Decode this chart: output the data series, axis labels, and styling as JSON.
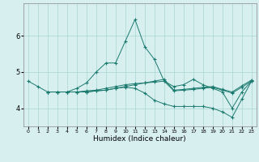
{
  "title": "",
  "xlabel": "Humidex (Indice chaleur)",
  "xlim": [
    -0.5,
    23.5
  ],
  "ylim": [
    3.5,
    6.9
  ],
  "yticks": [
    4,
    5,
    6
  ],
  "xticks": [
    0,
    1,
    2,
    3,
    4,
    5,
    6,
    7,
    8,
    9,
    10,
    11,
    12,
    13,
    14,
    15,
    16,
    17,
    18,
    19,
    20,
    21,
    22,
    23
  ],
  "background_color": "#d8eff0",
  "grid_color": "#aad4d4",
  "line_color": "#1a7a6e",
  "lines": [
    {
      "x": [
        0,
        1,
        2,
        3,
        4,
        5,
        6,
        7,
        8,
        9,
        10,
        11,
        12,
        13,
        14,
        15,
        16,
        17,
        18,
        19,
        20,
        21,
        22,
        23
      ],
      "y": [
        4.75,
        4.6,
        4.45,
        4.45,
        4.45,
        4.55,
        4.7,
        5.0,
        5.25,
        5.25,
        5.85,
        6.45,
        5.7,
        5.35,
        4.75,
        4.6,
        4.65,
        4.8,
        4.65,
        4.55,
        4.45,
        4.0,
        4.45,
        4.75
      ]
    },
    {
      "x": [
        2,
        3,
        4,
        5,
        6,
        7,
        8,
        9,
        10,
        11,
        12,
        13,
        14,
        15,
        16,
        17,
        18,
        19,
        20,
        21,
        22,
        23
      ],
      "y": [
        4.45,
        4.45,
        4.45,
        4.45,
        4.45,
        4.48,
        4.5,
        4.55,
        4.6,
        4.65,
        4.7,
        4.75,
        4.8,
        4.5,
        4.52,
        4.55,
        4.58,
        4.6,
        4.52,
        4.45,
        4.62,
        4.78
      ]
    },
    {
      "x": [
        2,
        3,
        4,
        5,
        6,
        7,
        8,
        9,
        10,
        11,
        12,
        13,
        14,
        15,
        16,
        17,
        18,
        19,
        20,
        21,
        22,
        23
      ],
      "y": [
        4.45,
        4.45,
        4.45,
        4.45,
        4.48,
        4.5,
        4.55,
        4.6,
        4.65,
        4.68,
        4.7,
        4.72,
        4.75,
        4.48,
        4.5,
        4.52,
        4.55,
        4.58,
        4.5,
        4.42,
        4.58,
        4.75
      ]
    },
    {
      "x": [
        2,
        3,
        4,
        5,
        6,
        7,
        8,
        9,
        10,
        11,
        12,
        13,
        14,
        15,
        16,
        17,
        18,
        19,
        20,
        21,
        22,
        23
      ],
      "y": [
        4.45,
        4.45,
        4.45,
        4.45,
        4.45,
        4.48,
        4.5,
        4.55,
        4.58,
        4.55,
        4.42,
        4.22,
        4.12,
        4.05,
        4.05,
        4.05,
        4.05,
        4.0,
        3.9,
        3.75,
        4.25,
        4.75
      ]
    }
  ]
}
